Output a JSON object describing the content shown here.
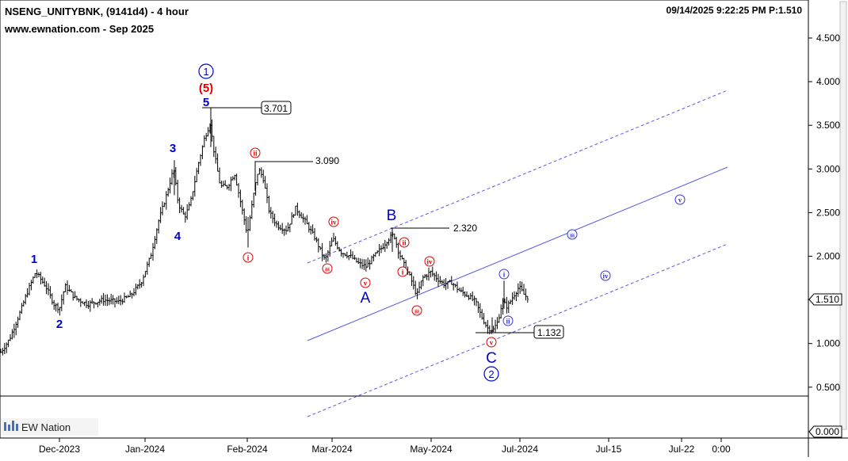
{
  "header": {
    "title": "NSENG_UNITYBNK, (9141d4) - 4 hour",
    "subtitle": "www.ewnation.com  - Sep 2025",
    "timestamp": "09/14/2025 9:22:25 PM  P:1.510"
  },
  "logo": {
    "text": "EW Nation"
  },
  "colors": {
    "bars": "#000000",
    "wave_blue": "#0000cc",
    "wave_red": "#dd0000",
    "channel": "#5a5ae6"
  },
  "chart_data": {
    "type": "ohlc",
    "x_ticks": [
      "Dec-2023",
      "Jan-2024",
      "Feb-2024",
      "Mar-2024",
      "May-2024",
      "Jul-2024",
      "Jul-15",
      "Jul-22",
      "0:00"
    ],
    "y_ticks": [
      "4.500",
      "4.000",
      "3.500",
      "3.000",
      "2.500",
      "2.000",
      "1.500",
      "1.000",
      "0.500"
    ],
    "ylim": [
      0.4,
      4.85
    ],
    "last_price": "1.510",
    "lower_panel_value": "0.000",
    "price_path": [
      [
        1,
        0.9
      ],
      [
        12,
        1.05
      ],
      [
        25,
        1.35
      ],
      [
        35,
        1.6
      ],
      [
        45,
        1.82
      ],
      [
        58,
        1.65
      ],
      [
        68,
        1.45
      ],
      [
        75,
        1.4
      ],
      [
        82,
        1.66
      ],
      [
        95,
        1.52
      ],
      [
        110,
        1.45
      ],
      [
        130,
        1.5
      ],
      [
        150,
        1.48
      ],
      [
        165,
        1.55
      ],
      [
        178,
        1.7
      ],
      [
        190,
        2.0
      ],
      [
        200,
        2.4
      ],
      [
        210,
        2.7
      ],
      [
        219,
        3.0
      ],
      [
        225,
        2.6
      ],
      [
        233,
        2.45
      ],
      [
        240,
        2.6
      ],
      [
        250,
        3.05
      ],
      [
        258,
        3.35
      ],
      [
        265,
        3.52
      ],
      [
        270,
        3.2
      ],
      [
        278,
        2.8
      ],
      [
        287,
        2.8
      ],
      [
        296,
        2.95
      ],
      [
        304,
        2.6
      ],
      [
        312,
        2.25
      ],
      [
        320,
        2.7
      ],
      [
        326,
        3.0
      ],
      [
        332,
        2.9
      ],
      [
        340,
        2.5
      ],
      [
        350,
        2.35
      ],
      [
        362,
        2.3
      ],
      [
        373,
        2.55
      ],
      [
        385,
        2.4
      ],
      [
        398,
        2.2
      ],
      [
        410,
        1.95
      ],
      [
        420,
        2.2
      ],
      [
        430,
        2.05
      ],
      [
        442,
        2.0
      ],
      [
        452,
        1.92
      ],
      [
        462,
        1.88
      ],
      [
        472,
        2.0
      ],
      [
        482,
        2.1
      ],
      [
        490,
        2.2
      ],
      [
        497,
        2.25
      ],
      [
        503,
        2.05
      ],
      [
        510,
        1.9
      ],
      [
        518,
        1.75
      ],
      [
        526,
        1.55
      ],
      [
        533,
        1.75
      ],
      [
        543,
        1.82
      ],
      [
        551,
        1.75
      ],
      [
        560,
        1.68
      ],
      [
        570,
        1.7
      ],
      [
        580,
        1.6
      ],
      [
        590,
        1.55
      ],
      [
        600,
        1.48
      ],
      [
        608,
        1.3
      ],
      [
        615,
        1.18
      ],
      [
        622,
        1.15
      ],
      [
        628,
        1.25
      ],
      [
        634,
        1.48
      ],
      [
        640,
        1.42
      ],
      [
        648,
        1.55
      ],
      [
        655,
        1.65
      ],
      [
        662,
        1.55
      ],
      [
        666,
        1.53
      ]
    ],
    "annotations": {
      "levels": [
        {
          "label": "3.701",
          "value": 3.701,
          "boxed": true
        },
        {
          "label": "3.090",
          "value": 3.09,
          "boxed": false
        },
        {
          "label": "2.320",
          "value": 2.32,
          "boxed": false
        },
        {
          "label": "1.132",
          "value": 1.132,
          "boxed": true
        }
      ],
      "wave_labels": [
        {
          "text": "1",
          "style": "blue"
        },
        {
          "text": "2",
          "style": "blue"
        },
        {
          "text": "3",
          "style": "blue"
        },
        {
          "text": "4",
          "style": "blue"
        },
        {
          "text": "5",
          "style": "blue"
        },
        {
          "text": "(5)",
          "style": "red"
        },
        {
          "text": "1",
          "style": "circle-blue"
        },
        {
          "text": "A",
          "style": "abc"
        },
        {
          "text": "B",
          "style": "abc"
        },
        {
          "text": "C",
          "style": "abc"
        },
        {
          "text": "2",
          "style": "circle-blue"
        }
      ],
      "minor_labels": [
        {
          "text": "i",
          "style": "red"
        },
        {
          "text": "ii",
          "style": "red"
        },
        {
          "text": "iii",
          "style": "red"
        },
        {
          "text": "iv",
          "style": "red"
        },
        {
          "text": "v",
          "style": "red"
        },
        {
          "text": "i",
          "style": "red"
        },
        {
          "text": "ii",
          "style": "red"
        },
        {
          "text": "iii",
          "style": "red"
        },
        {
          "text": "iv",
          "style": "red"
        },
        {
          "text": "v",
          "style": "red"
        },
        {
          "text": "i",
          "style": "blue"
        },
        {
          "text": "ii",
          "style": "blue"
        },
        {
          "text": "iii",
          "style": "blue"
        },
        {
          "text": "iv",
          "style": "blue"
        },
        {
          "text": "v",
          "style": "blue"
        }
      ]
    }
  }
}
